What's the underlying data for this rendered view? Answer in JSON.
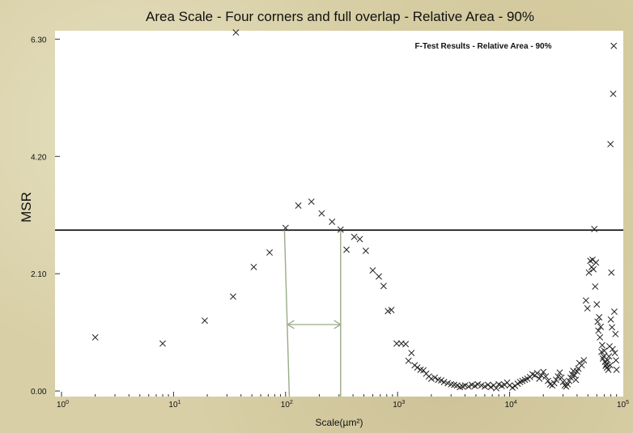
{
  "chart_data": {
    "type": "scatter",
    "title": "Area Scale - Four corners and full overlap - Relative Area - 90%",
    "inset_title": "F-Test Results - Relative Area - 90%",
    "xlabel": "Scale(µm²)",
    "ylabel": "MSR",
    "xscale": "log",
    "xlim": [
      1,
      100000
    ],
    "ylim": [
      -0.1,
      6.45
    ],
    "x_tick_labels": [
      {
        "value": 1,
        "base": "10",
        "exp": "0"
      },
      {
        "value": 10,
        "base": "10",
        "exp": "1"
      },
      {
        "value": 100,
        "base": "10",
        "exp": "2"
      },
      {
        "value": 1000,
        "base": "10",
        "exp": "3"
      },
      {
        "value": 10000,
        "base": "10",
        "exp": "4"
      },
      {
        "value": 100000,
        "base": "10",
        "exp": "5"
      }
    ],
    "y_ticks": [
      0.0,
      2.1,
      4.2,
      6.3
    ],
    "y_tick_labels": [
      "0.00",
      "2.10",
      "4.20",
      "6.30"
    ],
    "threshold": 2.88,
    "crossing_range": [
      108,
      310
    ],
    "marker": "x",
    "points": [
      [
        2,
        0.96
      ],
      [
        8,
        0.85
      ],
      [
        19,
        1.26
      ],
      [
        34,
        1.69
      ],
      [
        36,
        6.42
      ],
      [
        52,
        2.22
      ],
      [
        72,
        2.48
      ],
      [
        100,
        2.92
      ],
      [
        130,
        3.32
      ],
      [
        170,
        3.39
      ],
      [
        210,
        3.18
      ],
      [
        260,
        3.03
      ],
      [
        310,
        2.89
      ],
      [
        350,
        2.53
      ],
      [
        410,
        2.76
      ],
      [
        460,
        2.72
      ],
      [
        520,
        2.51
      ],
      [
        600,
        2.16
      ],
      [
        680,
        2.05
      ],
      [
        750,
        1.88
      ],
      [
        820,
        1.43
      ],
      [
        880,
        1.45
      ],
      [
        980,
        0.85
      ],
      [
        1080,
        0.85
      ],
      [
        1180,
        0.84
      ],
      [
        1250,
        0.54
      ],
      [
        1330,
        0.68
      ],
      [
        1420,
        0.46
      ],
      [
        1500,
        0.42
      ],
      [
        1600,
        0.38
      ],
      [
        1700,
        0.37
      ],
      [
        1800,
        0.31
      ],
      [
        1900,
        0.26
      ],
      [
        2000,
        0.22
      ],
      [
        2150,
        0.24
      ],
      [
        2300,
        0.2
      ],
      [
        2450,
        0.19
      ],
      [
        2600,
        0.16
      ],
      [
        2800,
        0.14
      ],
      [
        3000,
        0.12
      ],
      [
        3200,
        0.11
      ],
      [
        3400,
        0.1
      ],
      [
        3600,
        0.07
      ],
      [
        3800,
        0.08
      ],
      [
        4000,
        0.1
      ],
      [
        4300,
        0.08
      ],
      [
        4600,
        0.11
      ],
      [
        4900,
        0.09
      ],
      [
        5200,
        0.12
      ],
      [
        5600,
        0.1
      ],
      [
        6000,
        0.08
      ],
      [
        6400,
        0.11
      ],
      [
        6800,
        0.07
      ],
      [
        7200,
        0.1
      ],
      [
        7600,
        0.05
      ],
      [
        8000,
        0.12
      ],
      [
        8500,
        0.09
      ],
      [
        9000,
        0.11
      ],
      [
        9500,
        0.15
      ],
      [
        10000,
        0.1
      ],
      [
        10600,
        0.06
      ],
      [
        11200,
        0.09
      ],
      [
        11800,
        0.13
      ],
      [
        12400,
        0.16
      ],
      [
        13000,
        0.18
      ],
      [
        13700,
        0.2
      ],
      [
        14400,
        0.22
      ],
      [
        15200,
        0.25
      ],
      [
        16000,
        0.3
      ],
      [
        16800,
        0.28
      ],
      [
        17600,
        0.32
      ],
      [
        18400,
        0.22
      ],
      [
        19200,
        0.28
      ],
      [
        20000,
        0.34
      ],
      [
        21000,
        0.26
      ],
      [
        22000,
        0.18
      ],
      [
        23000,
        0.12
      ],
      [
        24000,
        0.1
      ],
      [
        25000,
        0.14
      ],
      [
        26000,
        0.2
      ],
      [
        27000,
        0.26
      ],
      [
        28000,
        0.33
      ],
      [
        29000,
        0.24
      ],
      [
        30000,
        0.16
      ],
      [
        31000,
        0.1
      ],
      [
        32000,
        0.08
      ],
      [
        33000,
        0.12
      ],
      [
        34000,
        0.18
      ],
      [
        35000,
        0.24
      ],
      [
        36000,
        0.3
      ],
      [
        37000,
        0.36
      ],
      [
        38000,
        0.28
      ],
      [
        39000,
        0.2
      ],
      [
        40000,
        0.35
      ],
      [
        41000,
        0.4
      ],
      [
        42000,
        0.5
      ],
      [
        44000,
        0.46
      ],
      [
        46000,
        0.55
      ],
      [
        48000,
        1.62
      ],
      [
        49500,
        1.48
      ],
      [
        51000,
        2.12
      ],
      [
        52500,
        2.33
      ],
      [
        54000,
        2.22
      ],
      [
        55000,
        2.35
      ],
      [
        56000,
        2.18
      ],
      [
        57000,
        2.9
      ],
      [
        58000,
        1.87
      ],
      [
        59000,
        2.3
      ],
      [
        60000,
        1.55
      ],
      [
        61000,
        1.24
      ],
      [
        62000,
        1.08
      ],
      [
        63000,
        1.32
      ],
      [
        64000,
        0.96
      ],
      [
        65000,
        1.15
      ],
      [
        66000,
        0.7
      ],
      [
        67000,
        0.82
      ],
      [
        68000,
        0.58
      ],
      [
        69000,
        0.62
      ],
      [
        70000,
        0.72
      ],
      [
        71000,
        0.52
      ],
      [
        72000,
        0.45
      ],
      [
        73000,
        0.48
      ],
      [
        74000,
        0.42
      ],
      [
        75000,
        0.55
      ],
      [
        76000,
        0.38
      ],
      [
        77000,
        0.62
      ],
      [
        78000,
        0.8
      ],
      [
        79000,
        0.46
      ],
      [
        79500,
        4.42
      ],
      [
        80000,
        1.28
      ],
      [
        81000,
        2.12
      ],
      [
        82000,
        1.14
      ],
      [
        83000,
        0.75
      ],
      [
        84000,
        5.32
      ],
      [
        85000,
        6.18
      ],
      [
        86000,
        1.42
      ],
      [
        87000,
        0.68
      ],
      [
        88000,
        1.02
      ],
      [
        89000,
        0.55
      ],
      [
        90000,
        0.38
      ]
    ]
  }
}
